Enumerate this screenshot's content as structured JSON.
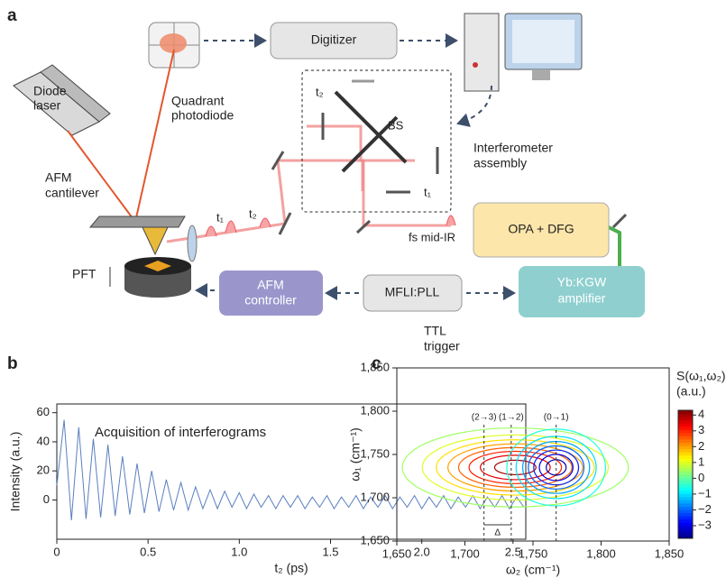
{
  "panel_a": {
    "panel": "a",
    "diode_laser": [
      "Diode",
      "laser"
    ],
    "quadrant_photodiode": [
      "Quadrant",
      "photodiode"
    ],
    "digitizer": "Digitizer",
    "afm_cantilever": [
      "AFM",
      "cantilever"
    ],
    "bs": "BS",
    "t2_top": "t₂",
    "t1_right": "t₁",
    "t1_pulse": "t₁",
    "t2_pulse": "t₂",
    "interferometer": [
      "Interferometer",
      "assembly"
    ],
    "fs_mid_ir": "fs mid-IR",
    "opa_dfg": "OPA + DFG",
    "pft": "PFT",
    "afm_controller": [
      "AFM",
      "controller"
    ],
    "mfli_pll": "MFLI:PLL",
    "yb_kgw": [
      "Yb:KGW",
      "amplifier"
    ],
    "ttl_trigger": [
      "TTL",
      "trigger"
    ]
  },
  "chart_data": [
    {
      "type": "line",
      "panel": "b",
      "annotation": "Acquisition of interferograms",
      "xlabel": "t₂ (ps)",
      "ylabel": "Intensity (a.u.)",
      "color": "#5a7fc0",
      "xlim": [
        0,
        2.57
      ],
      "ylim": [
        -27,
        66
      ],
      "xticks": [
        0,
        0.5,
        {
          "value": 1,
          "label": "1.0"
        },
        1.5,
        {
          "value": 2,
          "label": "2.0"
        },
        2.5
      ],
      "yticks": [
        0,
        20,
        40,
        60
      ],
      "x": [
        0,
        0.04,
        0.08,
        0.12,
        0.16,
        0.2,
        0.24,
        0.28,
        0.32,
        0.36,
        0.4,
        0.44,
        0.48,
        0.52,
        0.56,
        0.6,
        0.64,
        0.68,
        0.72,
        0.76,
        0.8,
        0.84,
        0.88,
        0.92,
        0.96,
        1,
        1.04,
        1.08,
        1.12,
        1.16,
        1.2,
        1.24,
        1.28,
        1.32,
        1.36,
        1.4,
        1.44,
        1.48,
        1.52,
        1.56,
        1.6,
        1.64,
        1.68,
        1.72,
        1.76,
        1.8,
        1.84,
        1.88,
        1.92,
        1.96,
        2,
        2.04,
        2.08,
        2.12,
        2.16,
        2.2,
        2.24,
        2.28,
        2.32,
        2.36,
        2.4,
        2.44,
        2.48,
        2.52,
        2.56
      ],
      "values": [
        10,
        55,
        -14,
        50,
        -13,
        42,
        -12,
        38,
        -11,
        30,
        -10,
        25,
        -9,
        20,
        -8,
        14,
        -7,
        12,
        -7,
        9,
        -6,
        7,
        -6,
        6,
        -5,
        5,
        -6,
        4,
        -5,
        3,
        -6,
        3,
        -5,
        3,
        -6,
        2,
        -5,
        3,
        -6,
        2,
        -5,
        3,
        -6,
        2,
        -5,
        3,
        -6,
        2,
        -5,
        3,
        -6,
        2,
        -5,
        3,
        -6,
        2,
        -5,
        3,
        -6,
        2,
        -5,
        3,
        -6,
        2,
        -5
      ]
    },
    {
      "type": "contour",
      "panel": "c",
      "xlabel": "ω₂ (cm⁻¹)",
      "ylabel": "ω₁ (cm⁻¹)",
      "xlim": [
        1650,
        1850
      ],
      "ylim": [
        1650,
        1850
      ],
      "xticks": [
        {
          "value": 1650,
          "label": "1,650"
        },
        {
          "value": 1700,
          "label": "1,700"
        },
        {
          "value": 1750,
          "label": "1,750"
        },
        {
          "value": 1800,
          "label": "1,800"
        },
        {
          "value": 1850,
          "label": "1,850"
        }
      ],
      "yticks": [
        {
          "value": 1650,
          "label": "1,650"
        },
        {
          "value": 1700,
          "label": "1,700"
        },
        {
          "value": 1750,
          "label": "1,750"
        },
        {
          "value": 1800,
          "label": "1,800"
        },
        {
          "value": 1850,
          "label": "1,850"
        }
      ],
      "colormap": "jet",
      "colorbar": {
        "title": [
          "S(ω₁,ω₂)",
          "(a.u.)"
        ],
        "lim": [
          -3.8,
          4.3
        ],
        "ticks": [
          4,
          3,
          2,
          1,
          0,
          {
            "value": -1,
            "label": "−1"
          },
          {
            "value": -2,
            "label": "−2"
          },
          {
            "value": -3,
            "label": "−3"
          }
        ]
      },
      "levels": [
        -3.5,
        -3,
        -2.5,
        -2,
        -1.5,
        -1,
        -0.5,
        0.5,
        1,
        1.5,
        2,
        2.5,
        3,
        3.5,
        4
      ],
      "peaks": [
        {
          "x": 1737,
          "y": 1735,
          "amplitude": 4.3,
          "sx": 40,
          "sy": 22
        },
        {
          "x": 1767,
          "y": 1735,
          "amplitude": -3.8,
          "sx": 18,
          "sy": 22
        }
      ],
      "transitions": [
        {
          "label": "(2→3)",
          "x": 1714
        },
        {
          "label": "(1→2)",
          "x": 1734
        },
        {
          "label": "(0→1)",
          "x": 1767
        }
      ],
      "delta_label": "Δ"
    }
  ]
}
